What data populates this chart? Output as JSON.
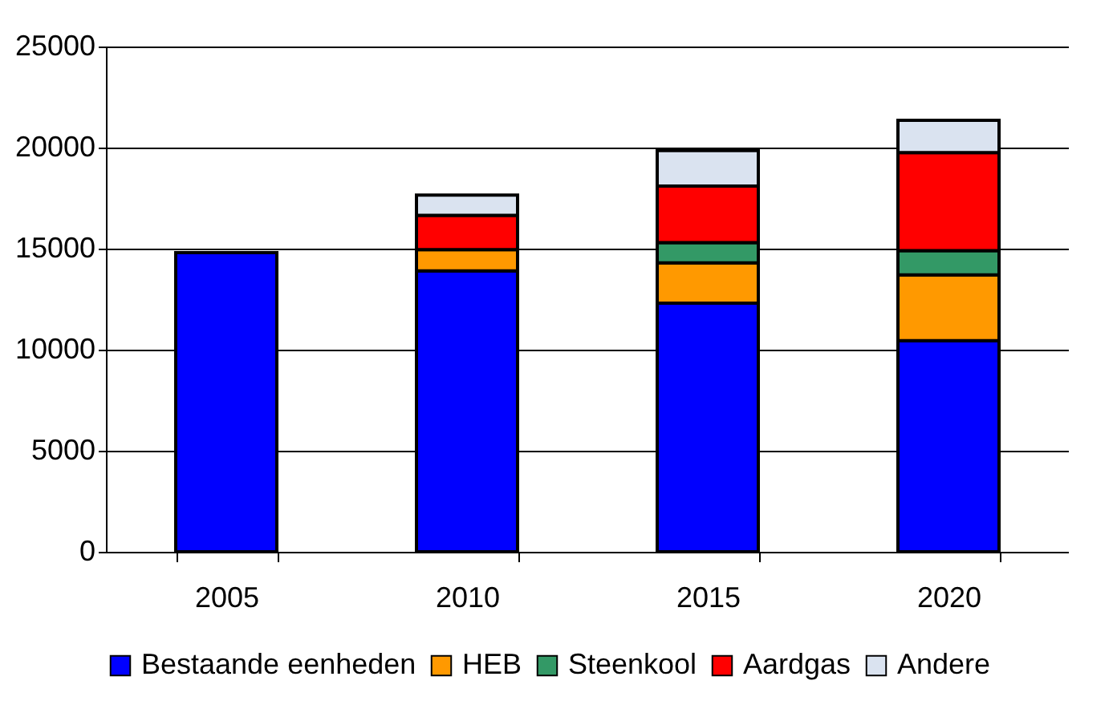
{
  "chart_data": {
    "type": "bar",
    "stacked": true,
    "categories": [
      "2005",
      "2010",
      "2015",
      "2020"
    ],
    "series": [
      {
        "name": "Bestaande eenheden",
        "color": "#0000ff",
        "values": [
          14800,
          13900,
          12300,
          10450
        ]
      },
      {
        "name": "HEB",
        "color": "#ff9900",
        "values": [
          null,
          1050,
          2000,
          3250
        ]
      },
      {
        "name": "Steenkool",
        "color": "#339966",
        "values": [
          null,
          null,
          1000,
          1200
        ]
      },
      {
        "name": "Aardgas",
        "color": "#ff0000",
        "values": [
          null,
          1700,
          2800,
          4850
        ]
      },
      {
        "name": "Andere",
        "color": "#dae3f0",
        "values": [
          null,
          1000,
          1750,
          1600
        ]
      }
    ],
    "ylim": [
      0,
      25000
    ],
    "yticks": [
      0,
      5000,
      10000,
      15000,
      20000,
      25000
    ],
    "grid": "y",
    "legend": "bottom"
  }
}
